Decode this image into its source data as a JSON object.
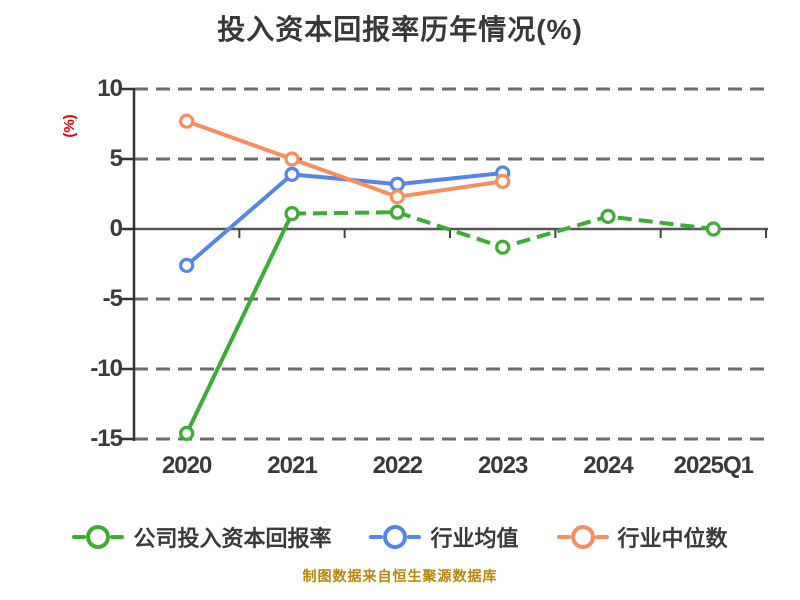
{
  "chart_data": {
    "type": "line",
    "title": "投入资本回报率历年情况(%)",
    "ylabel": "(%)",
    "ylabel_color": "#ee0000",
    "footer": "制图数据来自恒生聚源数据库",
    "categories": [
      "2020",
      "2021",
      "2022",
      "2023",
      "2024",
      "2025Q1"
    ],
    "yticks": [
      10,
      5,
      0,
      -5,
      -10,
      -15
    ],
    "ylim": [
      -15,
      10
    ],
    "grid": "horizontal-dashed",
    "legend_position": "bottom",
    "zero_axis": "solid",
    "series": [
      {
        "name": "公司投入资本回报率",
        "color": "#3cad33",
        "marker": "circle-white-fill",
        "dashed_from": 1,
        "values": [
          -14.6,
          1.1,
          1.2,
          -1.3,
          0.9,
          0.0
        ]
      },
      {
        "name": "行业均值",
        "color": "#5585e8",
        "marker": "circle-white-fill",
        "dashed_from": null,
        "values": [
          -2.6,
          3.9,
          3.2,
          4.0,
          null,
          null
        ]
      },
      {
        "name": "行业中位数",
        "color": "#f98d5c",
        "marker": "circle-white-fill",
        "dashed_from": null,
        "values": [
          7.7,
          5.0,
          2.3,
          3.4,
          null,
          null
        ]
      }
    ]
  }
}
